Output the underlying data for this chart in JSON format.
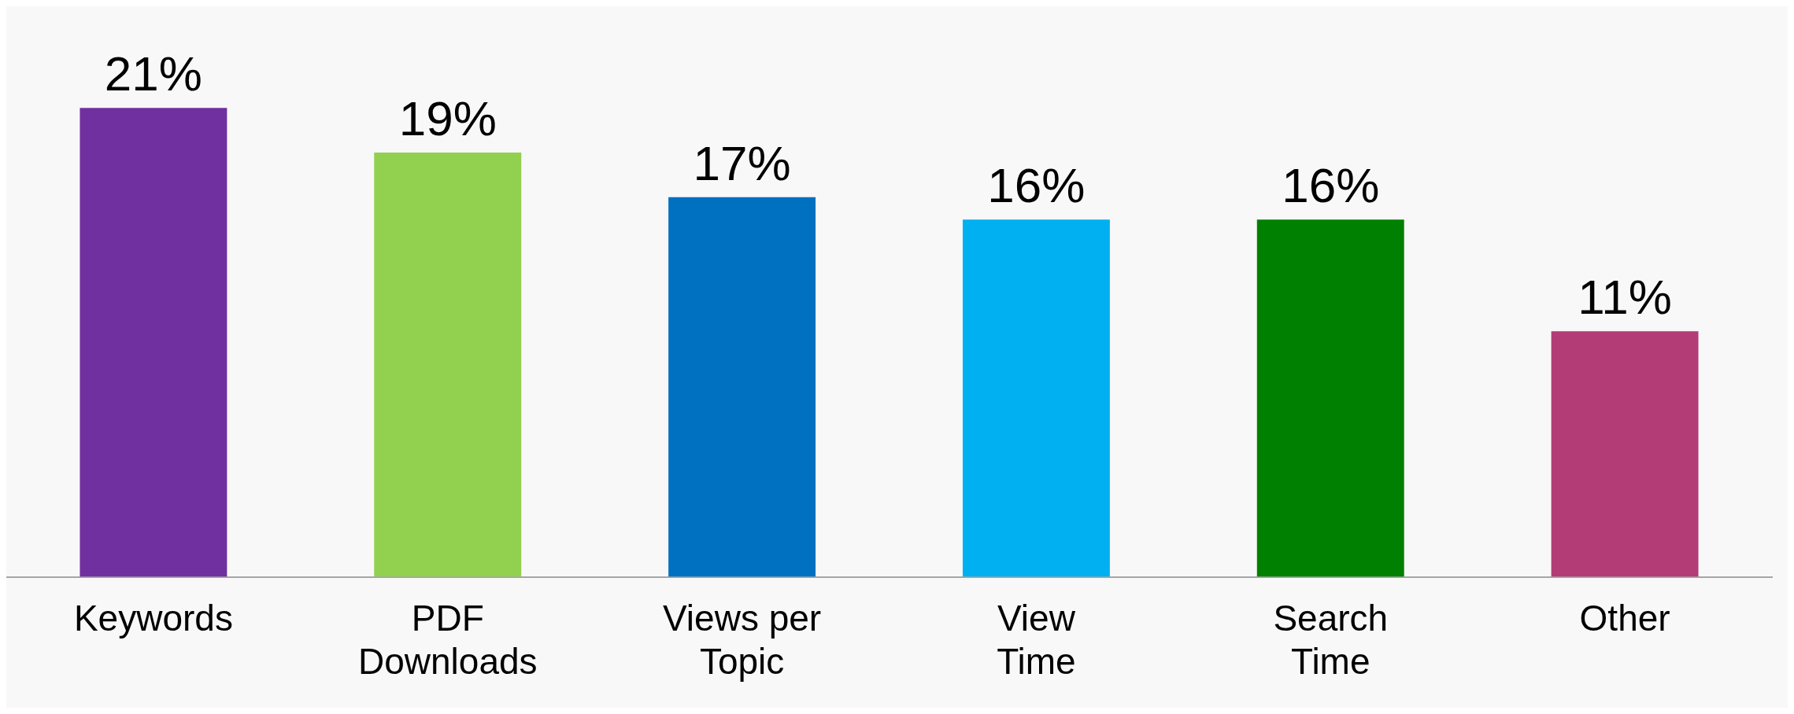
{
  "chart_data": {
    "type": "bar",
    "categories": [
      "Keywords",
      "PDF\nDownloads",
      "Views per\nTopic",
      "View\nTime",
      "Search\nTime",
      "Other"
    ],
    "values": [
      21,
      19,
      17,
      16,
      16,
      11
    ],
    "colors": [
      "#7030a0",
      "#92d050",
      "#0070c0",
      "#00b0f0",
      "#008000",
      "#b33c77"
    ],
    "value_labels": [
      "21%",
      "19%",
      "17%",
      "16%",
      "16%",
      "11%"
    ],
    "tick_labels": "x",
    "grid": false,
    "legend": false
  }
}
